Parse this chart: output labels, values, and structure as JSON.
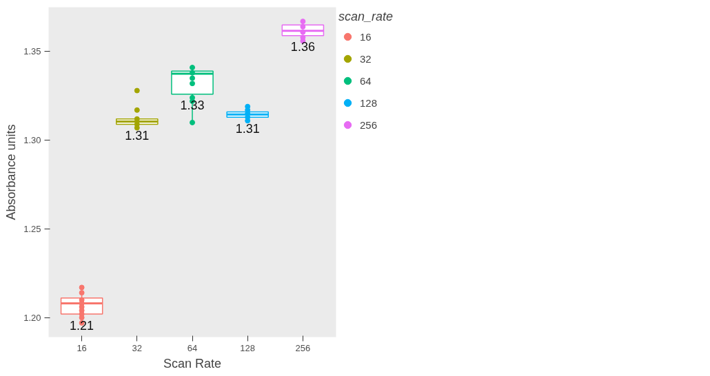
{
  "chart_data": {
    "type": "box",
    "xlabel": "Scan Rate",
    "ylabel": "Absorbance units",
    "legend_title": "scan_rate",
    "legend": "right",
    "grid": false,
    "categories": [
      "16",
      "32",
      "64",
      "128",
      "256"
    ],
    "colors": [
      "#f8766d",
      "#a3a500",
      "#00bf7d",
      "#00b0f6",
      "#e76bf3"
    ],
    "ylim": [
      1.189,
      1.375
    ],
    "yticks": [
      {
        "value": 1.2,
        "label": "1.20"
      },
      {
        "value": 1.25,
        "label": "1.25"
      },
      {
        "value": 1.3,
        "label": "1.30"
      },
      {
        "value": 1.35,
        "label": "1.35"
      }
    ],
    "boxes": [
      {
        "low": 1.197,
        "q1": 1.202,
        "median": 1.208,
        "q3": 1.211,
        "high": 1.217
      },
      {
        "low": 1.307,
        "q1": 1.309,
        "median": 1.3105,
        "q3": 1.312,
        "high": 1.312
      },
      {
        "low": 1.31,
        "q1": 1.326,
        "median": 1.3375,
        "q3": 1.339,
        "high": 1.341
      },
      {
        "low": 1.311,
        "q1": 1.313,
        "median": 1.3145,
        "q3": 1.316,
        "high": 1.317
      },
      {
        "low": 1.356,
        "q1": 1.359,
        "median": 1.3617,
        "q3": 1.365,
        "high": 1.367
      }
    ],
    "series": [
      {
        "type": "scatter",
        "name": "16",
        "color": "#f8766d",
        "x": [
          "16",
          "16",
          "16",
          "16",
          "16",
          "16",
          "16",
          "16",
          "16"
        ],
        "values": [
          1.217,
          1.214,
          1.21,
          1.208,
          1.206,
          1.204,
          1.202,
          1.2,
          1.197
        ]
      },
      {
        "type": "scatter",
        "name": "32",
        "color": "#a3a500",
        "x": [
          "32",
          "32",
          "32",
          "32",
          "32"
        ],
        "values": [
          1.328,
          1.317,
          1.312,
          1.309,
          1.307
        ]
      },
      {
        "type": "scatter",
        "name": "64",
        "color": "#00bf7d",
        "x": [
          "64",
          "64",
          "64",
          "64",
          "64",
          "64",
          "64"
        ],
        "values": [
          1.341,
          1.338,
          1.335,
          1.332,
          1.324,
          1.322,
          1.31
        ]
      },
      {
        "type": "scatter",
        "name": "128",
        "color": "#00b0f6",
        "x": [
          "128",
          "128",
          "128",
          "128",
          "128"
        ],
        "values": [
          1.319,
          1.317,
          1.315,
          1.313,
          1.311
        ]
      },
      {
        "type": "scatter",
        "name": "256",
        "color": "#e76bf3",
        "x": [
          "256",
          "256",
          "256",
          "256",
          "256"
        ],
        "values": [
          1.367,
          1.364,
          1.361,
          1.358,
          1.356
        ]
      }
    ],
    "annotations": [
      "1.21",
      "1.31",
      "1.33",
      "1.31",
      "1.36"
    ]
  }
}
